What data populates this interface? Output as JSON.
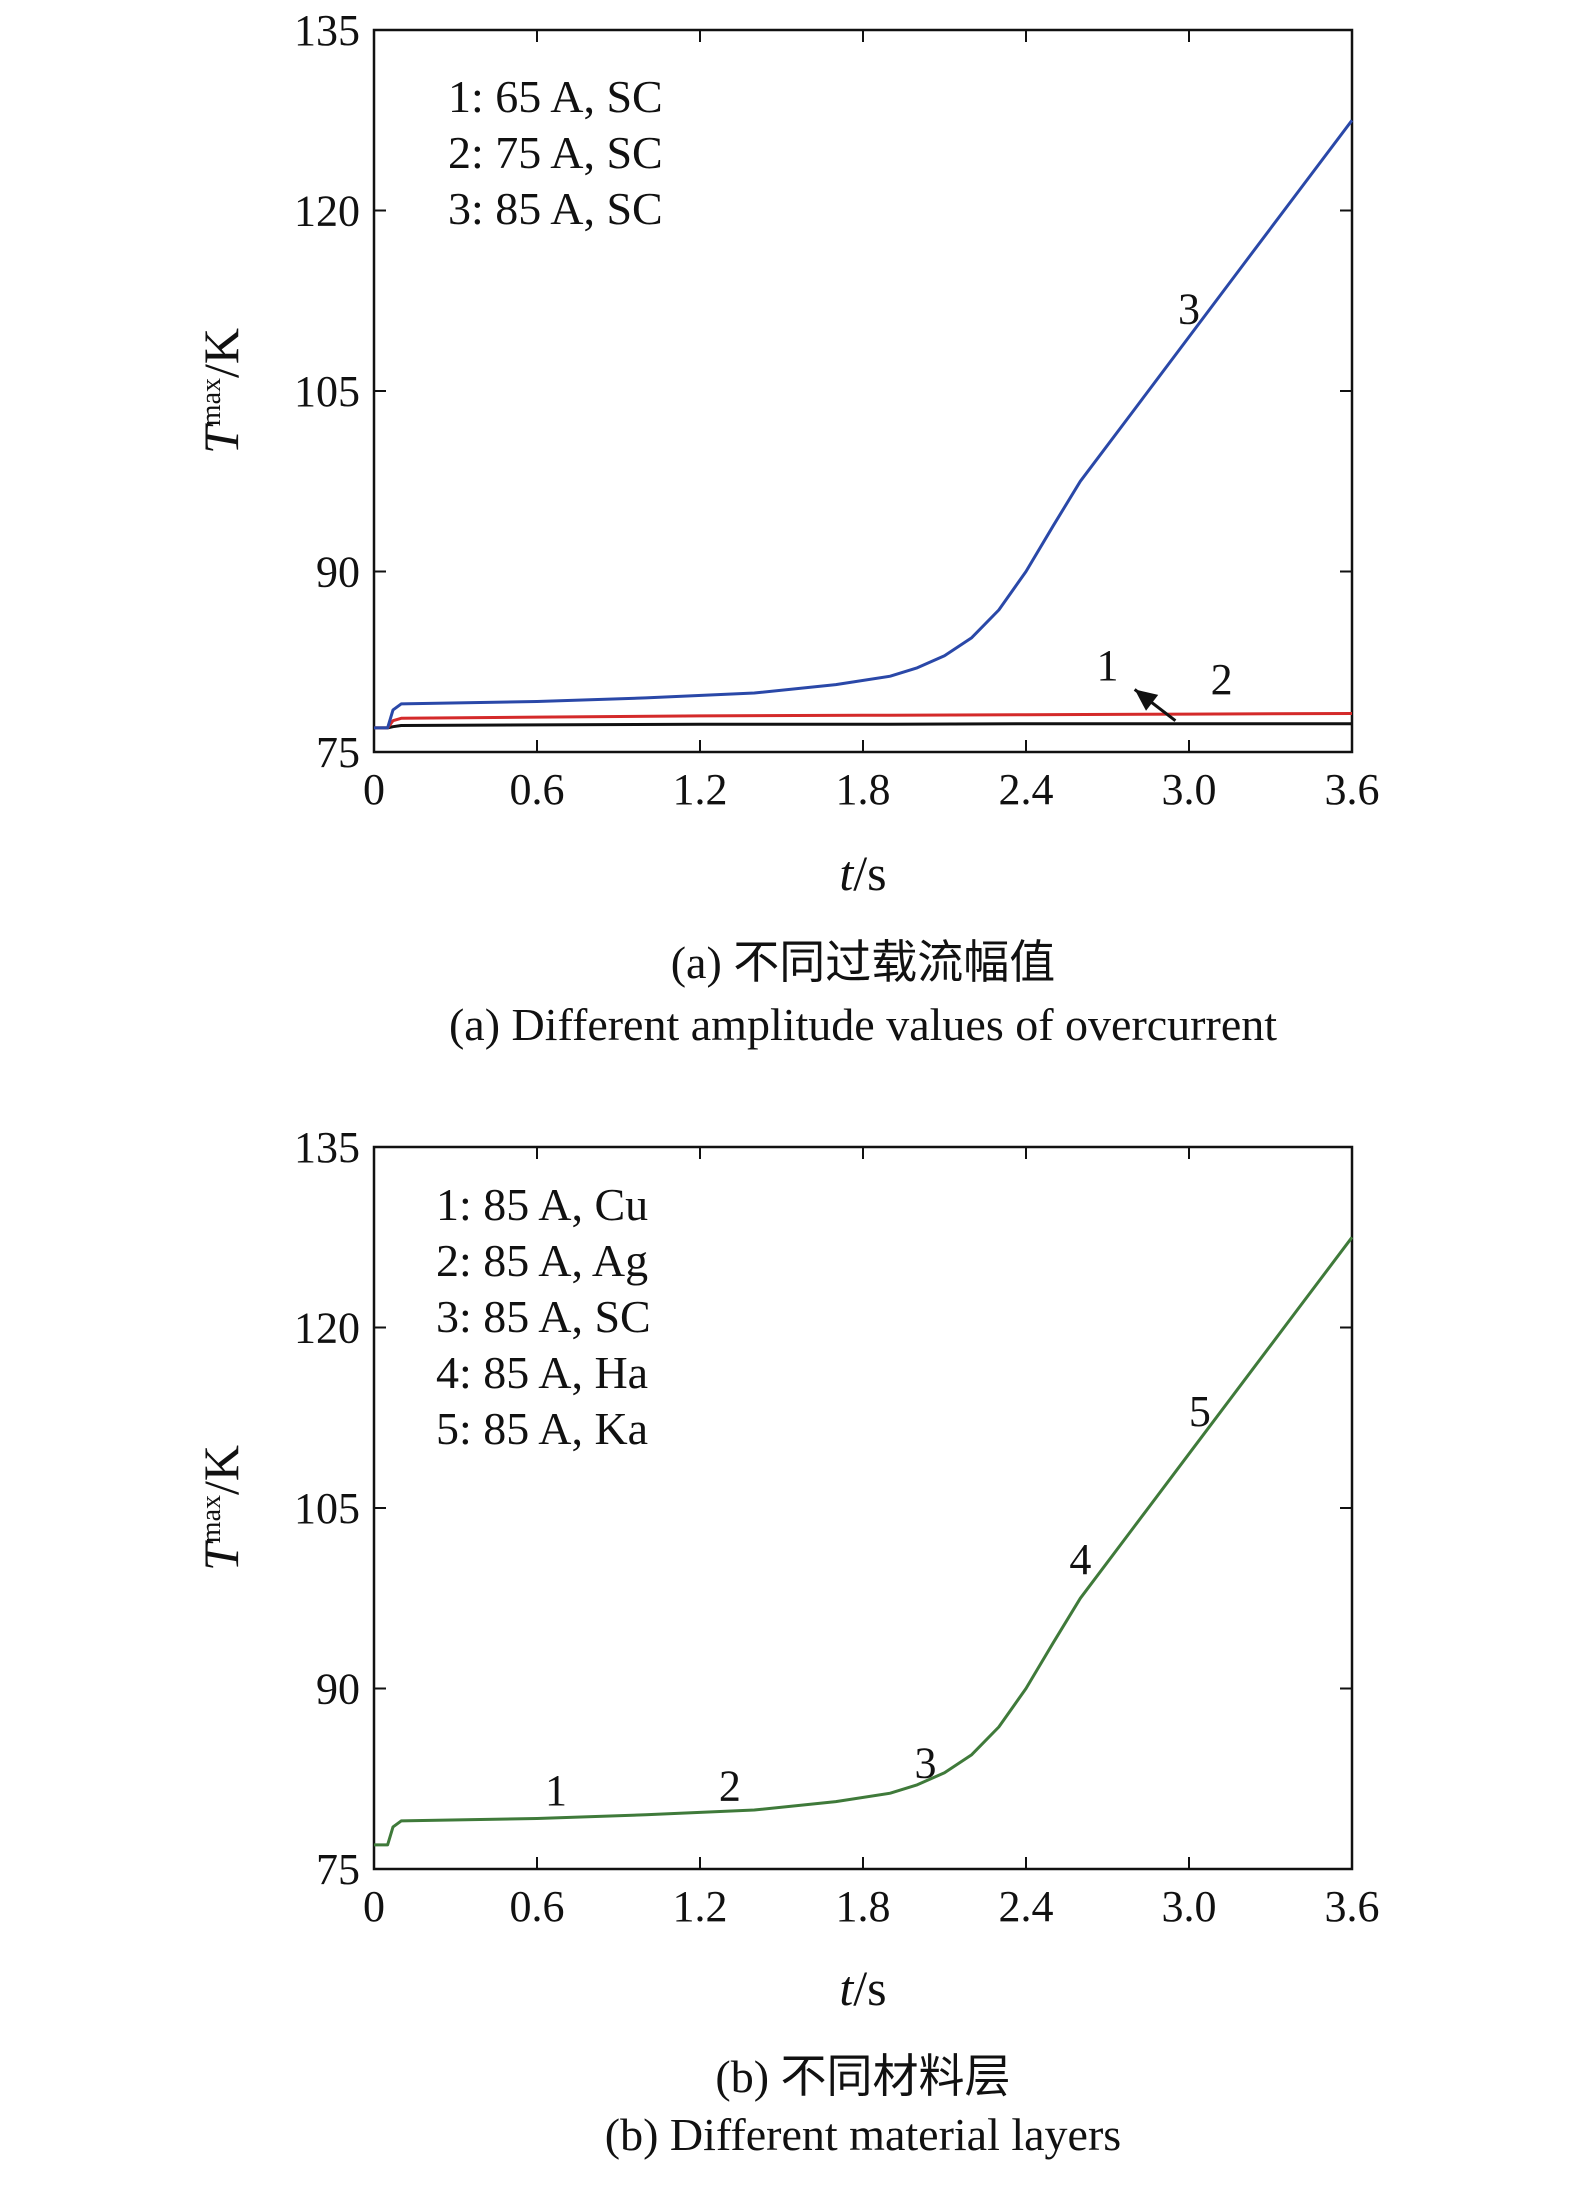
{
  "chart_data": [
    {
      "type": "line",
      "panel": "a",
      "xlabel_italic": "t",
      "xlabel_unit": "/s",
      "ylabel_italic": "T",
      "ylabel_sub": "max",
      "ylabel_unit": "/K",
      "xlim": [
        0,
        3.6
      ],
      "ylim": [
        75,
        135
      ],
      "xticks": [
        "0",
        "0.6",
        "1.2",
        "1.8",
        "2.4",
        "3.0",
        "3.6"
      ],
      "yticks": [
        "75",
        "90",
        "105",
        "120",
        "135"
      ],
      "legend": [
        "1: 65 A, SC",
        "2: 75 A, SC",
        "3: 85 A, SC"
      ],
      "caption_cn": "(a) 不同过载流幅值",
      "caption_en": "(a) Different amplitude values of overcurrent",
      "series": [
        {
          "label": "1",
          "color": "#111111",
          "x": [
            0,
            0.05,
            0.07,
            0.1,
            0.6,
            1.2,
            1.8,
            2.4,
            3.0,
            3.6
          ],
          "y": [
            77.0,
            77.0,
            77.1,
            77.2,
            77.25,
            77.3,
            77.3,
            77.35,
            77.35,
            77.35
          ]
        },
        {
          "label": "2",
          "color": "#d42a2a",
          "x": [
            0,
            0.05,
            0.07,
            0.1,
            0.6,
            1.2,
            1.8,
            2.4,
            3.0,
            3.6
          ],
          "y": [
            77.0,
            77.0,
            77.6,
            77.8,
            77.9,
            78.0,
            78.05,
            78.1,
            78.15,
            78.2
          ]
        },
        {
          "label": "3",
          "color": "#2a48a8",
          "x": [
            0,
            0.05,
            0.07,
            0.1,
            0.6,
            1.0,
            1.4,
            1.7,
            1.9,
            2.0,
            2.1,
            2.2,
            2.3,
            2.4,
            2.5,
            2.6,
            2.8,
            3.0,
            3.2,
            3.4,
            3.6
          ],
          "y": [
            77.0,
            77.0,
            78.5,
            79.0,
            79.2,
            79.5,
            79.9,
            80.6,
            81.3,
            82.0,
            83.0,
            84.5,
            86.8,
            90.0,
            93.8,
            97.5,
            103.5,
            109.5,
            115.5,
            121.5,
            127.5
          ]
        }
      ],
      "curve_labels": [
        {
          "text": "3",
          "x": 3.0,
          "y": 110.6
        },
        {
          "text": "1",
          "x": 2.7,
          "y": 81.0
        },
        {
          "text": "2",
          "x": 3.12,
          "y": 79.8
        }
      ],
      "arrow": {
        "from": [
          2.8,
          80.2
        ],
        "to": [
          2.95,
          77.6
        ]
      }
    },
    {
      "type": "line",
      "panel": "b",
      "xlabel_italic": "t",
      "xlabel_unit": "/s",
      "ylabel_italic": "T",
      "ylabel_sub": "max",
      "ylabel_unit": "/K",
      "xlim": [
        0,
        3.6
      ],
      "ylim": [
        75,
        135
      ],
      "xticks": [
        "0",
        "0.6",
        "1.2",
        "1.8",
        "2.4",
        "3.0",
        "3.6"
      ],
      "yticks": [
        "75",
        "90",
        "105",
        "120",
        "135"
      ],
      "legend": [
        "1: 85 A, Cu",
        "2: 85 A, Ag",
        "3: 85 A, SC",
        "4: 85 A, Ha",
        "5: 85 A, Ka"
      ],
      "caption_cn": "(b) 不同材料层",
      "caption_en": "(b) Different material layers",
      "series": [
        {
          "label": "1-5",
          "color": "#3f7a3a",
          "x": [
            0,
            0.05,
            0.07,
            0.1,
            0.6,
            1.0,
            1.4,
            1.7,
            1.9,
            2.0,
            2.1,
            2.2,
            2.3,
            2.4,
            2.5,
            2.6,
            2.8,
            3.0,
            3.2,
            3.4,
            3.6
          ],
          "y": [
            77.0,
            77.0,
            78.5,
            79.0,
            79.2,
            79.5,
            79.9,
            80.6,
            81.3,
            82.0,
            83.0,
            84.5,
            86.8,
            90.0,
            93.8,
            97.5,
            103.5,
            109.5,
            115.5,
            121.5,
            127.5
          ]
        }
      ],
      "curve_labels": [
        {
          "text": "1",
          "x": 0.67,
          "y": 80.3
        },
        {
          "text": "2",
          "x": 1.31,
          "y": 80.7
        },
        {
          "text": "3",
          "x": 2.03,
          "y": 82.6
        },
        {
          "text": "4",
          "x": 2.6,
          "y": 99.5
        },
        {
          "text": "5",
          "x": 3.04,
          "y": 111.8
        }
      ]
    }
  ]
}
